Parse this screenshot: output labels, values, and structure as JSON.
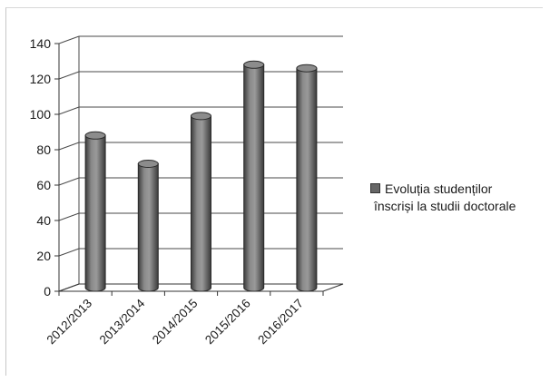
{
  "chart_data": {
    "type": "bar",
    "categories": [
      "2012/2013",
      "2013/2014",
      "2014/2015",
      "2015/2016",
      "2016/2017"
    ],
    "series": [
      {
        "name": "Evoluția studenților înscriși la studii doctorale",
        "values": [
          86,
          70,
          97,
          126,
          124
        ],
        "color": "#7a7a7a"
      }
    ],
    "ylim": [
      0,
      140
    ],
    "yticks": [
      "0",
      "20",
      "40",
      "60",
      "80",
      "100",
      "120",
      "140"
    ],
    "grid": true,
    "legend_position": "right",
    "three_d": true
  },
  "legend": {
    "line1": "Evoluția studenților",
    "line2": "înscriși la studii doctorale"
  }
}
